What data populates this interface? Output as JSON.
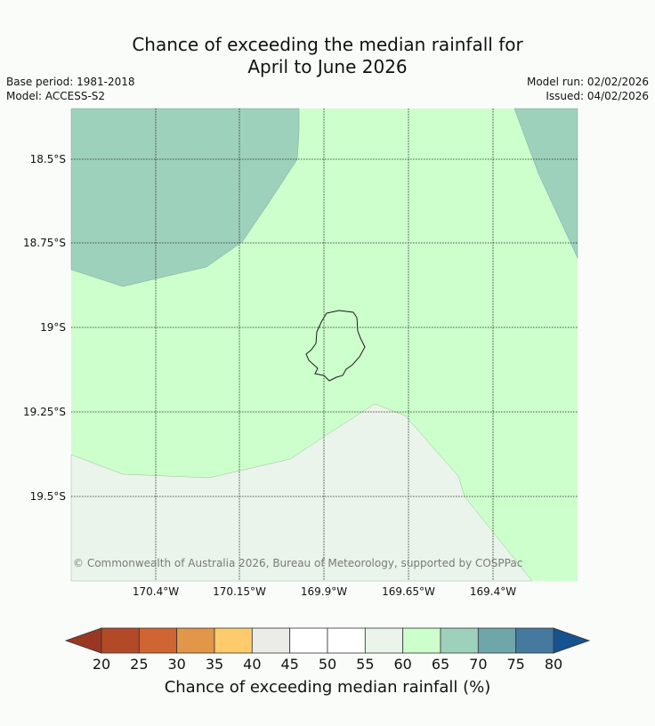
{
  "title": {
    "line1": "Chance of exceeding the median rainfall for",
    "line2": "April to June 2026"
  },
  "meta": {
    "base_period": "Base period: 1981-2018",
    "model": "Model: ACCESS-S2",
    "model_run": "Model run: 02/02/2026",
    "issued": "Issued: 04/02/2026"
  },
  "map": {
    "lat_ticks": [
      "18.5°S",
      "18.75°S",
      "19°S",
      "19.25°S",
      "19.5°S"
    ],
    "lon_ticks": [
      "170.4°W",
      "170.15°W",
      "169.9°W",
      "169.65°W",
      "169.4°W"
    ],
    "copyright": "© Commonwealth of Australia 2026, Bureau of Meteorology, supported by COSPPac",
    "region_colors": {
      "60-65": "#ccffcc",
      "65-70": "#9ed1bb",
      "55-60": "#eaf4ea"
    }
  },
  "colorbar": {
    "label": "Chance of exceeding median rainfall (%)",
    "ticks": [
      "20",
      "25",
      "30",
      "35",
      "40",
      "45",
      "50",
      "55",
      "60",
      "65",
      "70",
      "75",
      "80"
    ],
    "colors": [
      "#b24a28",
      "#cf6533",
      "#e29649",
      "#fdcb6b",
      "#ebebe7",
      "#ffffff",
      "#ffffff",
      "#eaf4ea",
      "#ccffcc",
      "#9ed1bb",
      "#6fa6a9",
      "#45799d"
    ],
    "under_color": "#9a3723",
    "over_color": "#175290"
  }
}
